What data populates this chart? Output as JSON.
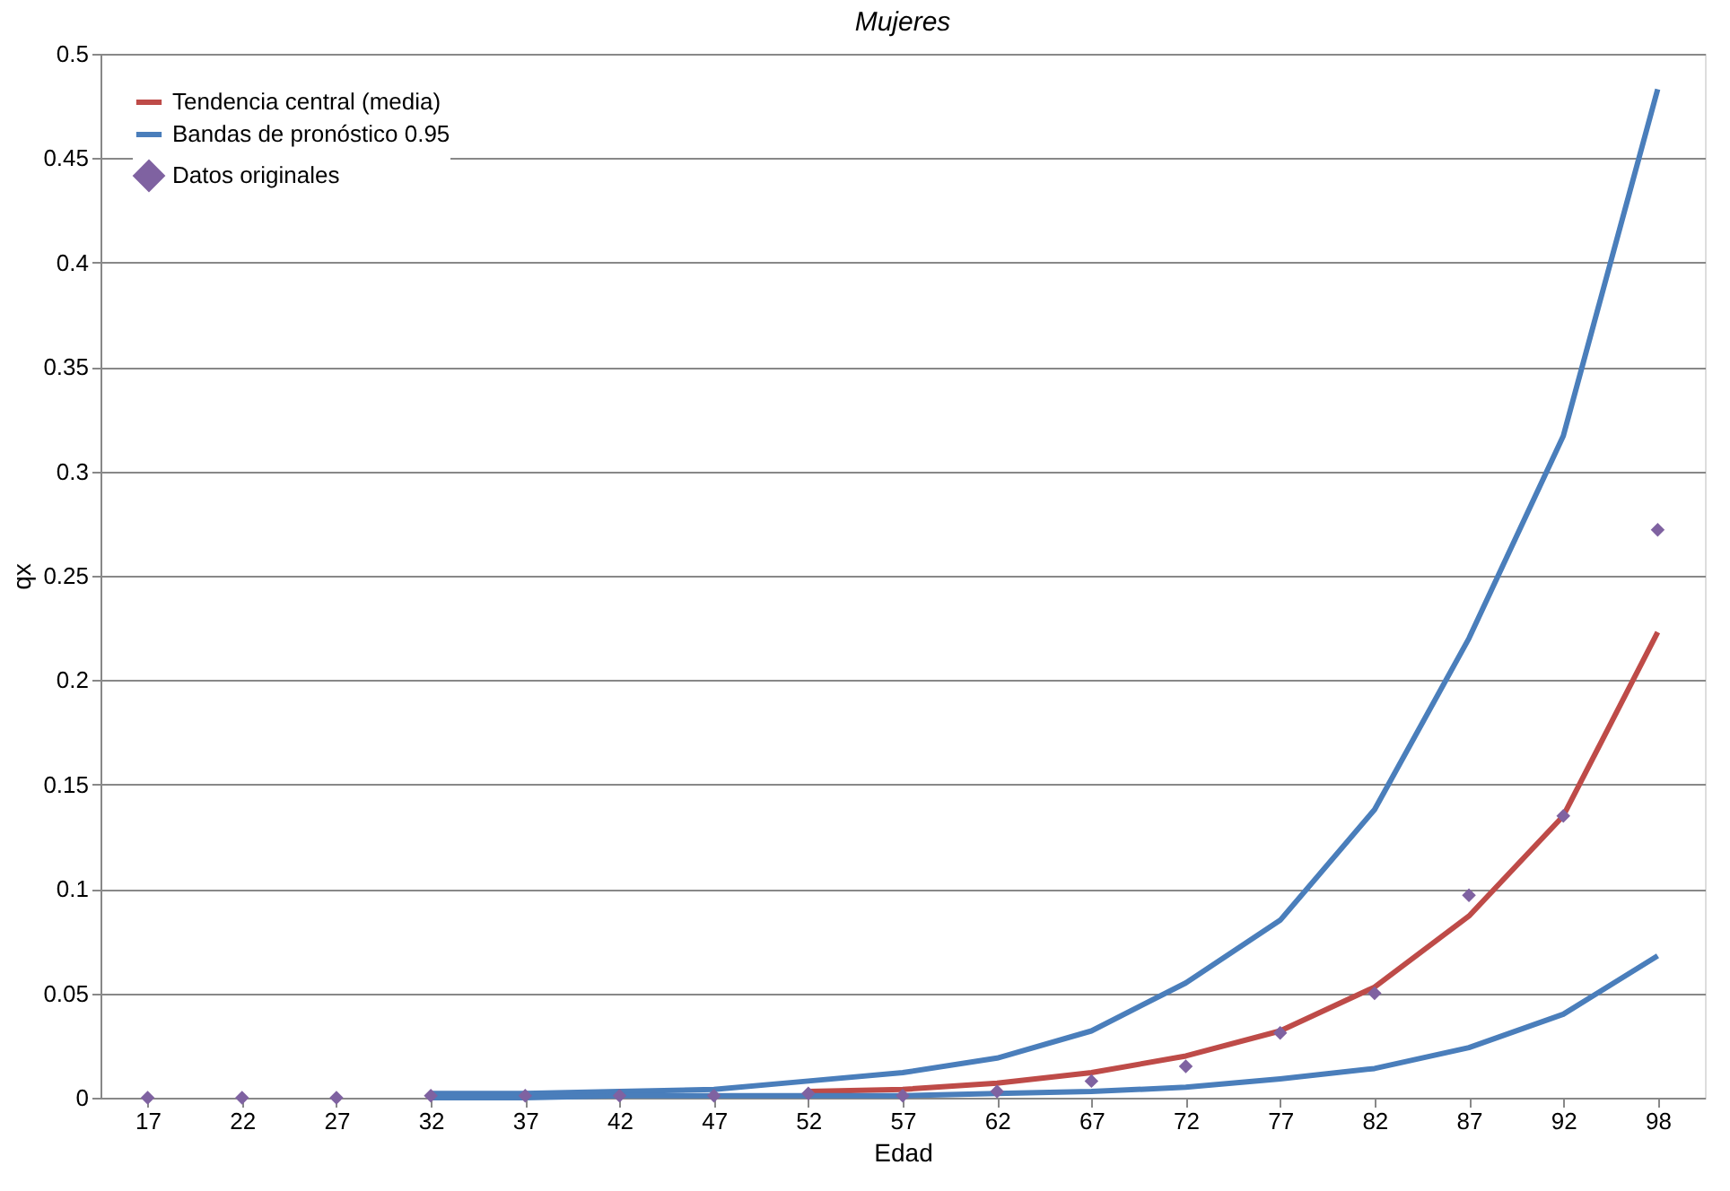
{
  "chart_data": {
    "type": "line",
    "title": "Mujeres",
    "xlabel": "Edad",
    "ylabel": "qx",
    "categories": [
      "17",
      "22",
      "27",
      "32",
      "37",
      "42",
      "47",
      "52",
      "57",
      "62",
      "67",
      "72",
      "77",
      "82",
      "87",
      "92",
      "98"
    ],
    "series": [
      {
        "name": "Tendencia central (media)",
        "color": "#be4b48",
        "marker": "none",
        "values": [
          null,
          null,
          null,
          null,
          null,
          null,
          null,
          0.003,
          0.004,
          0.007,
          0.012,
          0.02,
          0.032,
          0.053,
          0.087,
          0.135,
          0.223
        ]
      },
      {
        "name": "Bandas de pronóstico 0.95",
        "color": "#4a7ebb",
        "marker": "none",
        "values": [
          null,
          null,
          null,
          0.002,
          0.002,
          0.003,
          0.004,
          0.008,
          0.012,
          0.019,
          0.032,
          0.055,
          0.085,
          0.138,
          0.22,
          0.317,
          0.483
        ]
      },
      {
        "color": "#4a7ebb",
        "marker": "none",
        "values": [
          null,
          null,
          null,
          0,
          0,
          0.001,
          0.001,
          0.001,
          0.001,
          0.002,
          0.003,
          0.005,
          0.009,
          0.014,
          0.024,
          0.04,
          0.068
        ]
      },
      {
        "name": "Datos originales",
        "color": "#7f62a1",
        "type": "scatter",
        "marker": "diamond",
        "values": [
          0,
          0,
          0,
          0.001,
          0.001,
          0.001,
          0.001,
          0.002,
          0.001,
          0.003,
          0.008,
          0.015,
          0.031,
          0.05,
          0.097,
          0.135,
          0.272
        ]
      }
    ],
    "ylim": [
      0,
      0.5
    ],
    "yticks": [
      0,
      0.05,
      0.1,
      0.15,
      0.2,
      0.25,
      0.3,
      0.35,
      0.4,
      0.45,
      0.5
    ],
    "grid": "y",
    "legend": "top left"
  }
}
